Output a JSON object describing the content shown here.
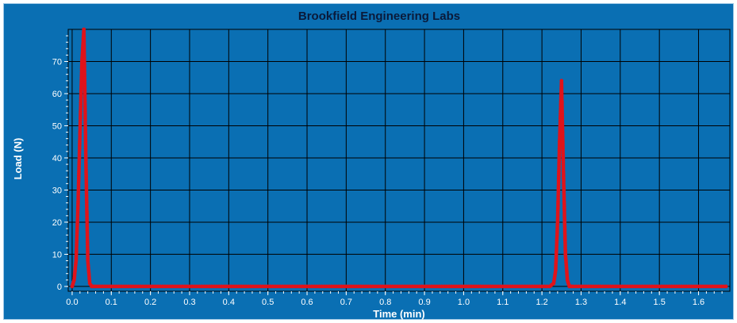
{
  "chart_data": {
    "type": "scatter",
    "title": "Brookfield Engineering Labs",
    "xlabel": "Time (min)",
    "ylabel": "Load (N)",
    "xlim": [
      -0.01,
      1.68
    ],
    "ylim": [
      -1.5,
      80
    ],
    "x_ticks": [
      "0.0",
      "0.1",
      "0.2",
      "0.3",
      "0.4",
      "0.5",
      "0.6",
      "0.7",
      "0.8",
      "0.9",
      "1.0",
      "1.1",
      "1.2",
      "1.3",
      "1.4",
      "1.5",
      "1.6"
    ],
    "y_ticks": [
      "0",
      "10",
      "20",
      "30",
      "40",
      "50",
      "60",
      "70"
    ],
    "grid": true,
    "colors": {
      "background": "#0a6fb3",
      "series": "#e0131a",
      "grid": "#000000"
    },
    "series": [
      {
        "x": [
          0.0,
          0.005,
          0.01,
          0.015,
          0.02,
          0.025,
          0.03,
          0.035,
          0.04,
          0.045,
          0.05,
          0.06,
          0.1,
          0.2,
          0.3,
          0.4,
          0.5,
          0.6,
          0.7,
          0.8,
          0.9,
          1.0,
          1.1,
          1.2,
          1.22,
          1.23,
          1.235,
          1.24,
          1.245,
          1.25,
          1.255,
          1.26,
          1.265,
          1.27,
          1.28,
          1.3,
          1.4,
          1.5,
          1.6,
          1.67
        ],
        "y": [
          0,
          2,
          8,
          25,
          48,
          70,
          80,
          40,
          8,
          1,
          0,
          0,
          0,
          0,
          0,
          0,
          0,
          0,
          0,
          0,
          0,
          0,
          0,
          0,
          0,
          1,
          5,
          20,
          45,
          64,
          35,
          10,
          2,
          0,
          0,
          0,
          0,
          0,
          0,
          0
        ]
      }
    ]
  }
}
